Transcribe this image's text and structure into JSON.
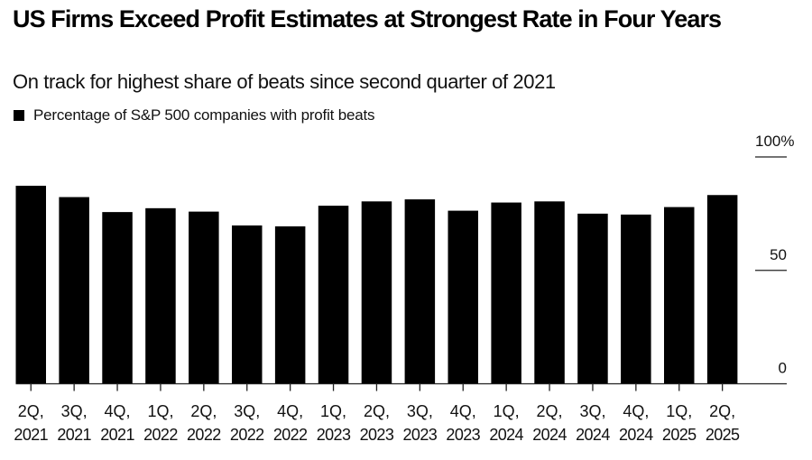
{
  "header": {
    "title": "US Firms Exceed Profit Estimates at Strongest Rate in Four Years",
    "subtitle": "On track for highest share of beats since second quarter of 2021"
  },
  "legend": {
    "label": "Percentage of S&P 500 companies with profit beats",
    "color": "#000000"
  },
  "chart_data": {
    "type": "bar",
    "title": "US Firms Exceed Profit Estimates at Strongest Rate in Four Years",
    "subtitle": "On track for highest share of beats since second quarter of 2021",
    "xlabel": "",
    "ylabel": "",
    "legend": {
      "entries": [
        "Percentage of S&P 500 companies with profit beats"
      ],
      "placement": "top-left"
    },
    "categories": [
      [
        "2Q,",
        "2021"
      ],
      [
        "3Q,",
        "2021"
      ],
      [
        "4Q,",
        "2021"
      ],
      [
        "1Q,",
        "2022"
      ],
      [
        "2Q,",
        "2022"
      ],
      [
        "3Q,",
        "2022"
      ],
      [
        "4Q,",
        "2022"
      ],
      [
        "1Q,",
        "2023"
      ],
      [
        "2Q,",
        "2023"
      ],
      [
        "3Q,",
        "2023"
      ],
      [
        "4Q,",
        "2023"
      ],
      [
        "1Q,",
        "2024"
      ],
      [
        "2Q,",
        "2024"
      ],
      [
        "3Q,",
        "2024"
      ],
      [
        "4Q,",
        "2024"
      ],
      [
        "1Q,",
        "2025"
      ],
      [
        "2Q,",
        "2025"
      ]
    ],
    "series": [
      {
        "name": "Percentage of S&P 500 companies with profit beats",
        "color": "#000000",
        "values": [
          87.3,
          82.3,
          75.7,
          77.4,
          75.9,
          69.8,
          69.4,
          78.5,
          80.4,
          81.3,
          76.3,
          79.9,
          80.4,
          75.0,
          74.6,
          77.9,
          83.2
        ]
      }
    ],
    "ylim": [
      0,
      100
    ],
    "yticks": [
      {
        "value": 100,
        "label": "100%"
      },
      {
        "value": 50,
        "label": "50"
      },
      {
        "value": 0,
        "label": "0"
      }
    ],
    "yaxis_position": "right",
    "grid": false
  }
}
